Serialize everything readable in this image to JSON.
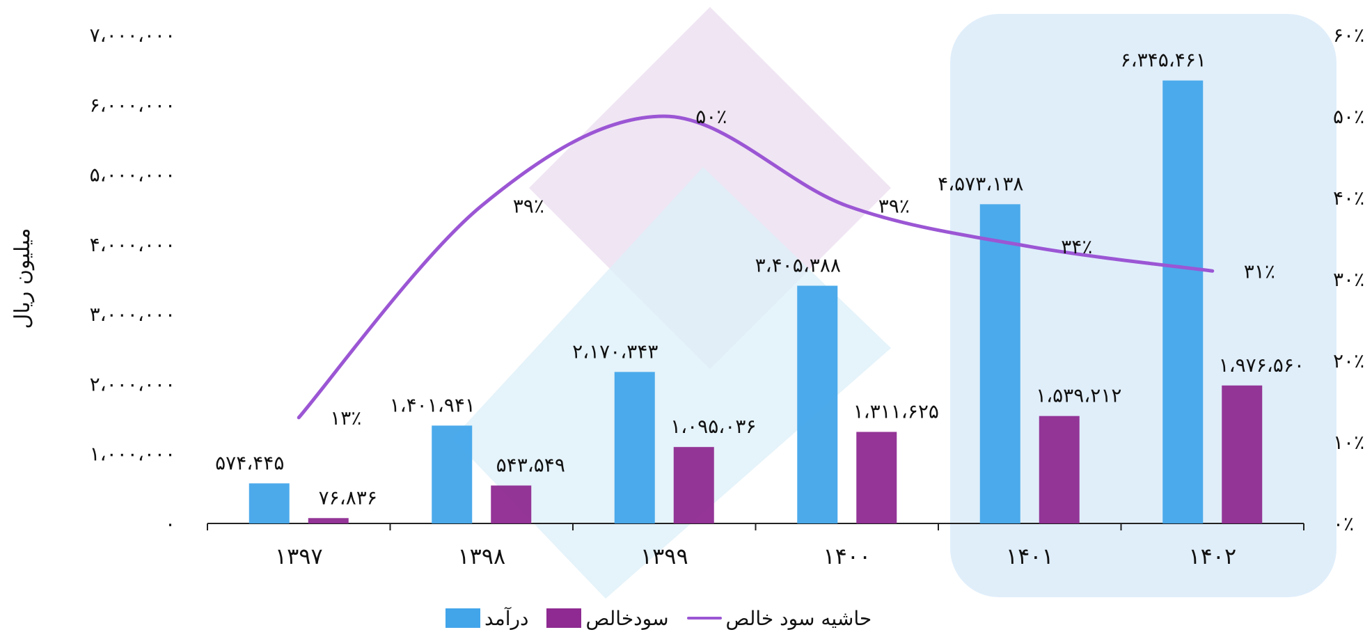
{
  "chart_data": {
    "type": "bar",
    "categories": [
      "۱۳۹۷",
      "۱۳۹۸",
      "۱۳۹۹",
      "۱۴۰۰",
      "۱۴۰۱",
      "۱۴۰۲"
    ],
    "series": [
      {
        "name": "درآمد",
        "kind": "bar",
        "axis": "left",
        "color": "#42A5EA",
        "values": [
          574445,
          1401941,
          2170343,
          3405388,
          4573138,
          6345461
        ],
        "labels": [
          "۵۷۴،۴۴۵",
          "۱،۴۰۱،۹۴۱",
          "۲،۱۷۰،۳۴۳",
          "۳،۴۰۵،۳۸۸",
          "۴،۵۷۳،۱۳۸",
          "۶،۳۴۵،۴۶۱"
        ]
      },
      {
        "name": "سودخالص",
        "kind": "bar",
        "axis": "left",
        "color": "#8E2A91",
        "values": [
          76836,
          543549,
          1095036,
          1311625,
          1539212,
          1976560
        ],
        "labels": [
          "۷۶،۸۳۶",
          "۵۴۳،۵۴۹",
          "۱،۰۹۵،۰۳۶",
          "۱،۳۱۱،۶۲۵",
          "۱،۵۳۹،۲۱۲",
          "۱،۹۷۶،۵۶۰"
        ]
      },
      {
        "name": "حاشیه سود خالص",
        "kind": "line",
        "axis": "right",
        "color": "#9B56D4",
        "values": [
          13,
          39,
          50,
          39,
          34,
          31
        ],
        "labels": [
          "۱۳٪",
          "۳۹٪",
          "۵۰٪",
          "۳۹٪",
          "۳۴٪",
          "۳۱٪"
        ]
      }
    ],
    "ylabel": "میلیون ریال",
    "ylim": [
      0,
      7000000
    ],
    "y2lim": [
      0,
      60
    ],
    "yticks": [
      "۰",
      "۱،۰۰۰،۰۰۰",
      "۲،۰۰۰،۰۰۰",
      "۳،۰۰۰،۰۰۰",
      "۴،۰۰۰،۰۰۰",
      "۵،۰۰۰،۰۰۰",
      "۶،۰۰۰،۰۰۰",
      "۷،۰۰۰،۰۰۰"
    ],
    "y2ticks": [
      "۰٪",
      "۱۰٪",
      "۲۰٪",
      "۳۰٪",
      "۴۰٪",
      "۵۰٪",
      "۶۰٪"
    ],
    "grid": false,
    "legend": "bottom",
    "highlight_categories": [
      "۱۴۰۱",
      "۱۴۰۲"
    ]
  }
}
